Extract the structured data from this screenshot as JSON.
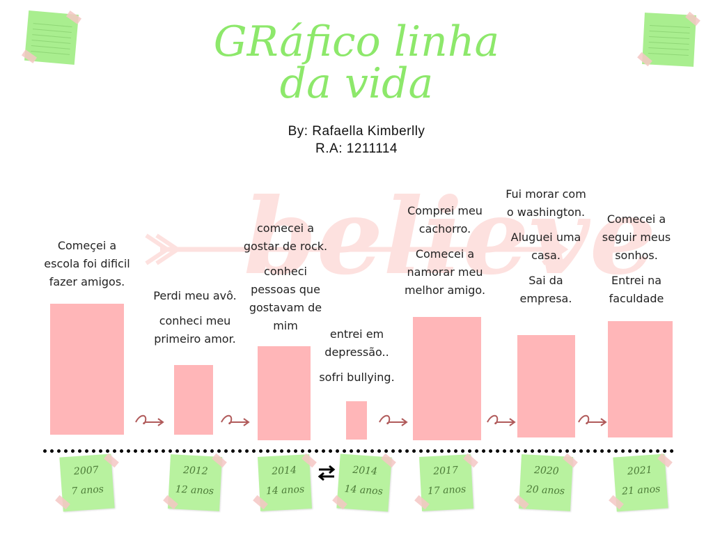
{
  "title": {
    "line1": "GRáfico linha",
    "line2": "da vida"
  },
  "byline": {
    "author": "By: Rafaella Kimberlly",
    "ra": "R.A: 1211114"
  },
  "watermark": "believe",
  "events": [
    {
      "year": "2007",
      "age": "7 anos",
      "value": 1.0,
      "caption": [
        "Começei a",
        "escola foi dificil",
        "fazer amigos."
      ]
    },
    {
      "year": "2012",
      "age": "12 anos",
      "value": 0.53,
      "caption": [
        "Perdi meu avô.",
        "",
        "conheci meu",
        "primeiro amor."
      ]
    },
    {
      "year": "2014",
      "age": "14 anos",
      "value": 0.72,
      "caption": [
        "comecei a",
        "gostar de rock.",
        "",
        "conheci",
        "pessoas que",
        "gostavam de",
        "mim"
      ]
    },
    {
      "year": "2014",
      "age": "14 anos",
      "value": 0.29,
      "caption": [
        "entrei em",
        "depressão..",
        "",
        "sofri bullying."
      ]
    },
    {
      "year": "2017",
      "age": "17 anos",
      "value": 0.94,
      "caption": [
        "Comprei meu",
        "cachorro.",
        "",
        "Comecei a",
        "namorar meu",
        "melhor amigo."
      ]
    },
    {
      "year": "2020",
      "age": "20 anos",
      "value": 0.78,
      "caption": [
        "Fui morar com",
        "o washington.",
        "",
        "Aluguei uma",
        "casa.",
        "",
        "Sai da",
        "empresa."
      ]
    },
    {
      "year": "2021",
      "age": "21 anos",
      "value": 0.89,
      "caption": [
        "Comecei a",
        "seguir meus",
        "sonhos.",
        "",
        "Entrei na",
        "faculdade"
      ]
    }
  ],
  "colors": {
    "bar": "#ffb6b8",
    "note": "#b8f29f",
    "title": "#8de86b",
    "arrow": "#b05a5a"
  },
  "icons": {
    "between_3_4": "swap-arrows-icon",
    "connector": "curly-arrow-icon"
  }
}
